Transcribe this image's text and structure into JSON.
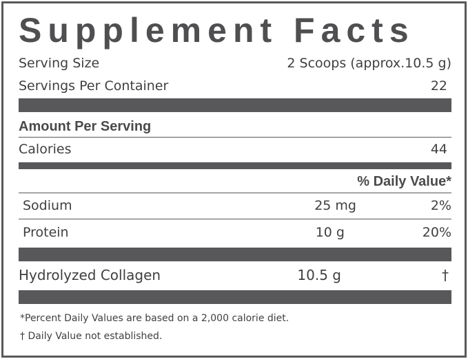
{
  "title": "Supplement Facts",
  "serving_size": {
    "label": "Serving Size",
    "value": "2 Scoops (approx.10.5 g)"
  },
  "servings_per_container": {
    "label": "Servings Per Container",
    "value": "22"
  },
  "amount_per_serving": "Amount Per Serving",
  "calories": {
    "label": "Calories",
    "value": "44"
  },
  "daily_value_header": "% Daily Value*",
  "nutrients": [
    {
      "name": "Sodium",
      "amount": "25 mg",
      "dv": "2%"
    },
    {
      "name": "Protein",
      "amount": "10 g",
      "dv": "20%"
    }
  ],
  "other": {
    "name": "Hydrolyzed Collagen",
    "amount": "10.5 g",
    "dv": "†"
  },
  "footnotes": [
    "*Percent Daily Values are based on a 2,000 calorie diet.",
    "† Daily Value not established."
  ],
  "colors": {
    "ink": "#58585a",
    "background": "#ffffff"
  }
}
